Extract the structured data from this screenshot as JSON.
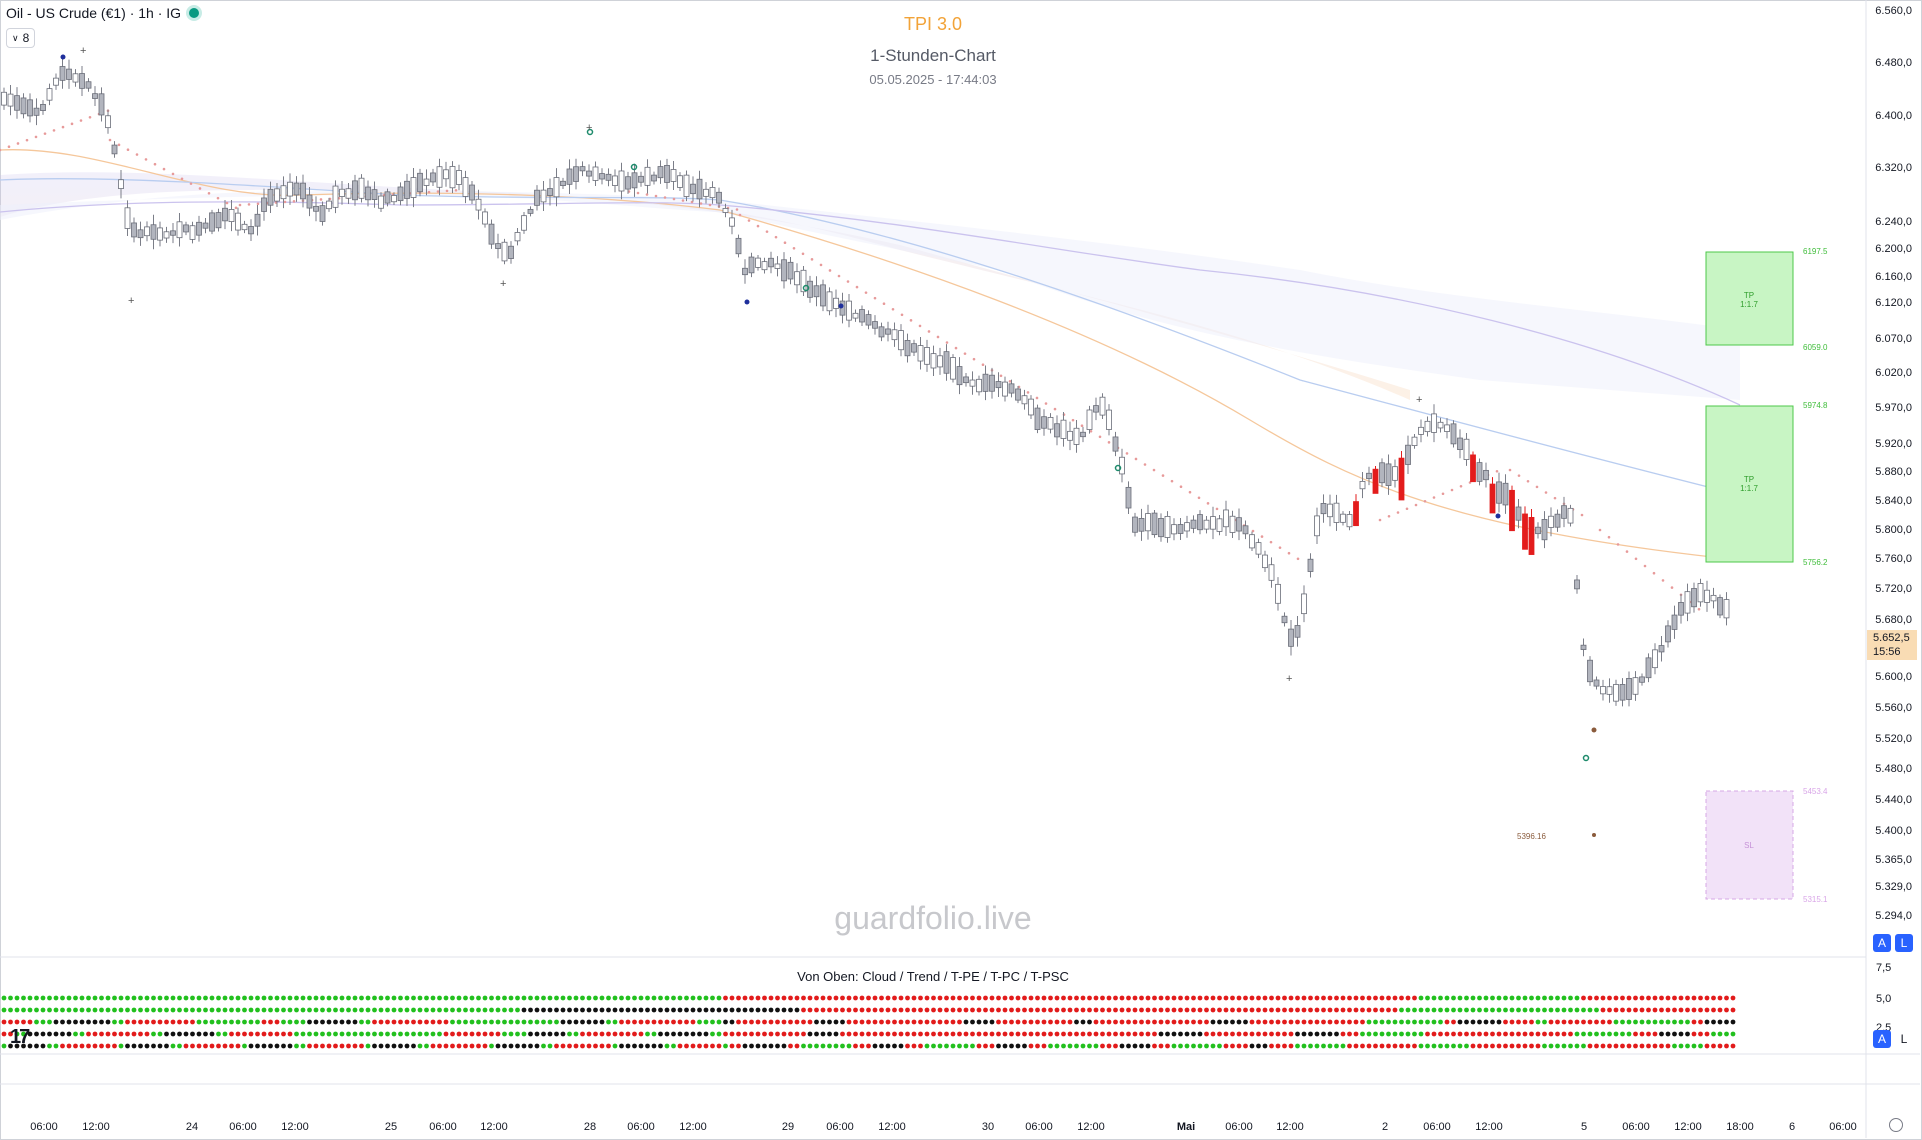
{
  "header": {
    "symbol": "Oil - US Crude (€1) · 1h · IG",
    "collapse_count": "8",
    "title": "TPI 3.0",
    "subtitle": "1-Stunden-Chart",
    "datetime": "05.05.2025 - 17:44:03"
  },
  "watermark": "guardfolio.live",
  "price_axis": {
    "labels": [
      "6.560,0",
      "6.480,0",
      "6.400,0",
      "6.320,0",
      "6.240,0",
      "6.200,0",
      "6.160,0",
      "6.120,0",
      "6.070,0",
      "6.020,0",
      "5.970,0",
      "5.920,0",
      "5.880,0",
      "5.840,0",
      "5.800,0",
      "5.760,0",
      "5.720,0",
      "5.680,0",
      "5.600,0",
      "5.560,0",
      "5.520,0",
      "5.480,0",
      "5.440,0",
      "5.400,0",
      "5.365,0",
      "5.329,0",
      "5.294,0"
    ],
    "current_price": "5.652,5",
    "countdown": "15:56"
  },
  "time_axis": {
    "labels": [
      "06:00",
      "12:00",
      "24",
      "06:00",
      "12:00",
      "25",
      "06:00",
      "12:00",
      "28",
      "06:00",
      "12:00",
      "29",
      "06:00",
      "12:00",
      "30",
      "06:00",
      "12:00",
      "Mai",
      "06:00",
      "12:00",
      "2",
      "06:00",
      "12:00",
      "5",
      "06:00",
      "12:00",
      "18:00",
      "6",
      "06:00"
    ]
  },
  "zones": {
    "tp1_label": "TP 1:1.7",
    "tp1_top": "6197.5",
    "tp1_bottom": "6059.0",
    "tp2_label": "TP 1:1.7",
    "tp2_top": "5974.8",
    "tp2_bottom": "5756.2",
    "sl_label": "SL",
    "sl_top": "5453.4",
    "sl_bottom": "5315.1",
    "entry_marker": "5396.16"
  },
  "indicator": {
    "title": "Von Oben: Cloud / Trend / T-PE / T-PC / T-PSC",
    "axis_labels": [
      "7,5",
      "5,0",
      "2,5"
    ]
  },
  "scale_buttons": {
    "auto": "A",
    "log": "L"
  },
  "colors": {
    "up": "#ffffff",
    "down": "#b2b5be",
    "bear_highlight": "#e31c1c",
    "psar": "#e79a9a",
    "cloud_green": "#22c01e",
    "cloud_red": "#e21b1b",
    "cloud_black": "#111111",
    "tp_fill": "#c8f5c4",
    "sl_fill": "#f2e2f8"
  }
}
